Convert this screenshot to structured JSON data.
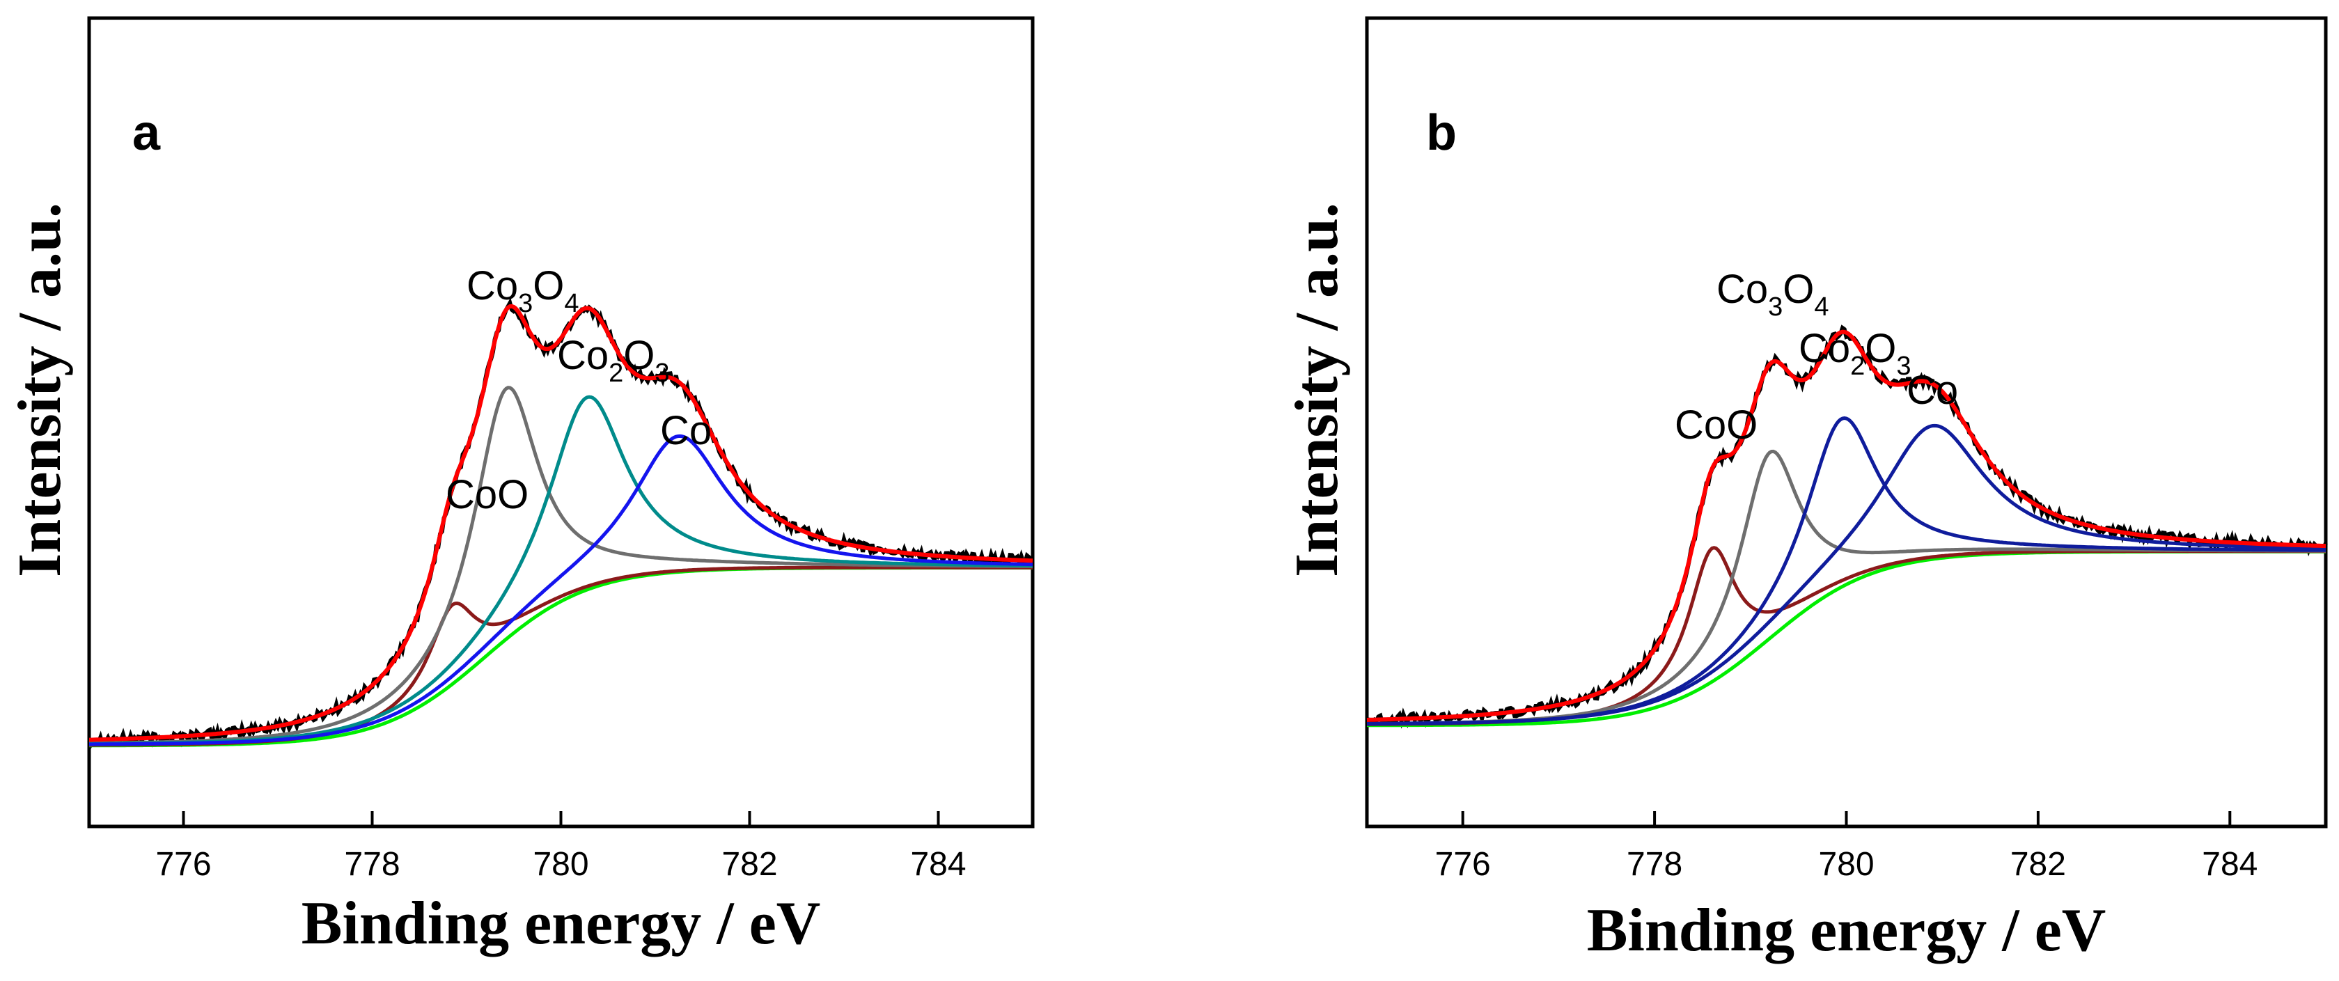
{
  "colors": {
    "data": "#000000",
    "fit": "#ff0000",
    "background": "#00ee00",
    "CoO": "#8b1a1a",
    "Co3O4": "#6e6e6e",
    "Co2O3_a": "#008b8b",
    "Co_a": "#1414ee",
    "Co2O3_b": "#0f1c9c",
    "Co_b": "#0f1c9c"
  },
  "chart_data": [
    {
      "type": "line",
      "panel_label": "a",
      "xlabel": "Binding energy / eV",
      "ylabel": "Intensity / a.u.",
      "xlim": [
        775,
        785
      ],
      "ylim": [
        0,
        1
      ],
      "x_ticks": [
        "776",
        "778",
        "780",
        "782",
        "784"
      ],
      "x_tick_values": [
        776,
        778,
        780,
        782,
        784
      ],
      "background": {
        "left": 0.1,
        "right": 0.32,
        "center": 779.2,
        "width": 0.55
      },
      "peaks": [
        {
          "name": "CoO",
          "label_main": "CoO",
          "label_parts": [
            "CoO"
          ],
          "center": 778.85,
          "height": 0.098,
          "width": 0.3
        },
        {
          "name": "Co3O4",
          "label_main": "Co3O4",
          "label_parts": [
            "Co",
            "3",
            "O",
            "4"
          ],
          "center": 779.42,
          "height": 0.31,
          "width": 0.42
        },
        {
          "name": "Co2O3",
          "label_main": "Co2O3",
          "label_parts": [
            "Co",
            "2",
            "O",
            "3"
          ],
          "center": 780.28,
          "height": 0.238,
          "width": 0.5
        },
        {
          "name": "Co",
          "label_main": "Co",
          "label_parts": [
            "Co"
          ],
          "center": 781.25,
          "height": 0.168,
          "width": 0.6
        }
      ],
      "curve_colors": [
        "CoO",
        "Co3O4",
        "Co2O3_a",
        "Co_a"
      ]
    },
    {
      "type": "line",
      "panel_label": "b",
      "xlabel": "Binding energy / eV",
      "ylabel": "Intensity / a.u.",
      "xlim": [
        775,
        785
      ],
      "ylim": [
        0,
        1
      ],
      "x_ticks": [
        "776",
        "778",
        "780",
        "782",
        "784"
      ],
      "x_tick_values": [
        776,
        778,
        780,
        782,
        784
      ],
      "background": {
        "left": 0.125,
        "right": 0.34,
        "center": 779.2,
        "width": 0.55
      },
      "peaks": [
        {
          "name": "CoO",
          "label_main": "CoO",
          "label_parts": [
            "CoO"
          ],
          "center": 778.6,
          "height": 0.165,
          "width": 0.3
        },
        {
          "name": "Co3O4",
          "label_main": "Co3O4",
          "label_parts": [
            "Co",
            "3",
            "O",
            "4"
          ],
          "center": 779.2,
          "height": 0.23,
          "width": 0.38
        },
        {
          "name": "Co2O3",
          "label_main": "Co2O3",
          "label_parts": [
            "Co",
            "2",
            "O",
            "3"
          ],
          "center": 779.95,
          "height": 0.208,
          "width": 0.45
        },
        {
          "name": "Co",
          "label_main": "Co",
          "label_parts": [
            "Co"
          ],
          "center": 780.9,
          "height": 0.165,
          "width": 0.65
        }
      ],
      "curve_colors": [
        "CoO",
        "Co3O4",
        "Co2O3_b",
        "Co_b"
      ]
    }
  ]
}
